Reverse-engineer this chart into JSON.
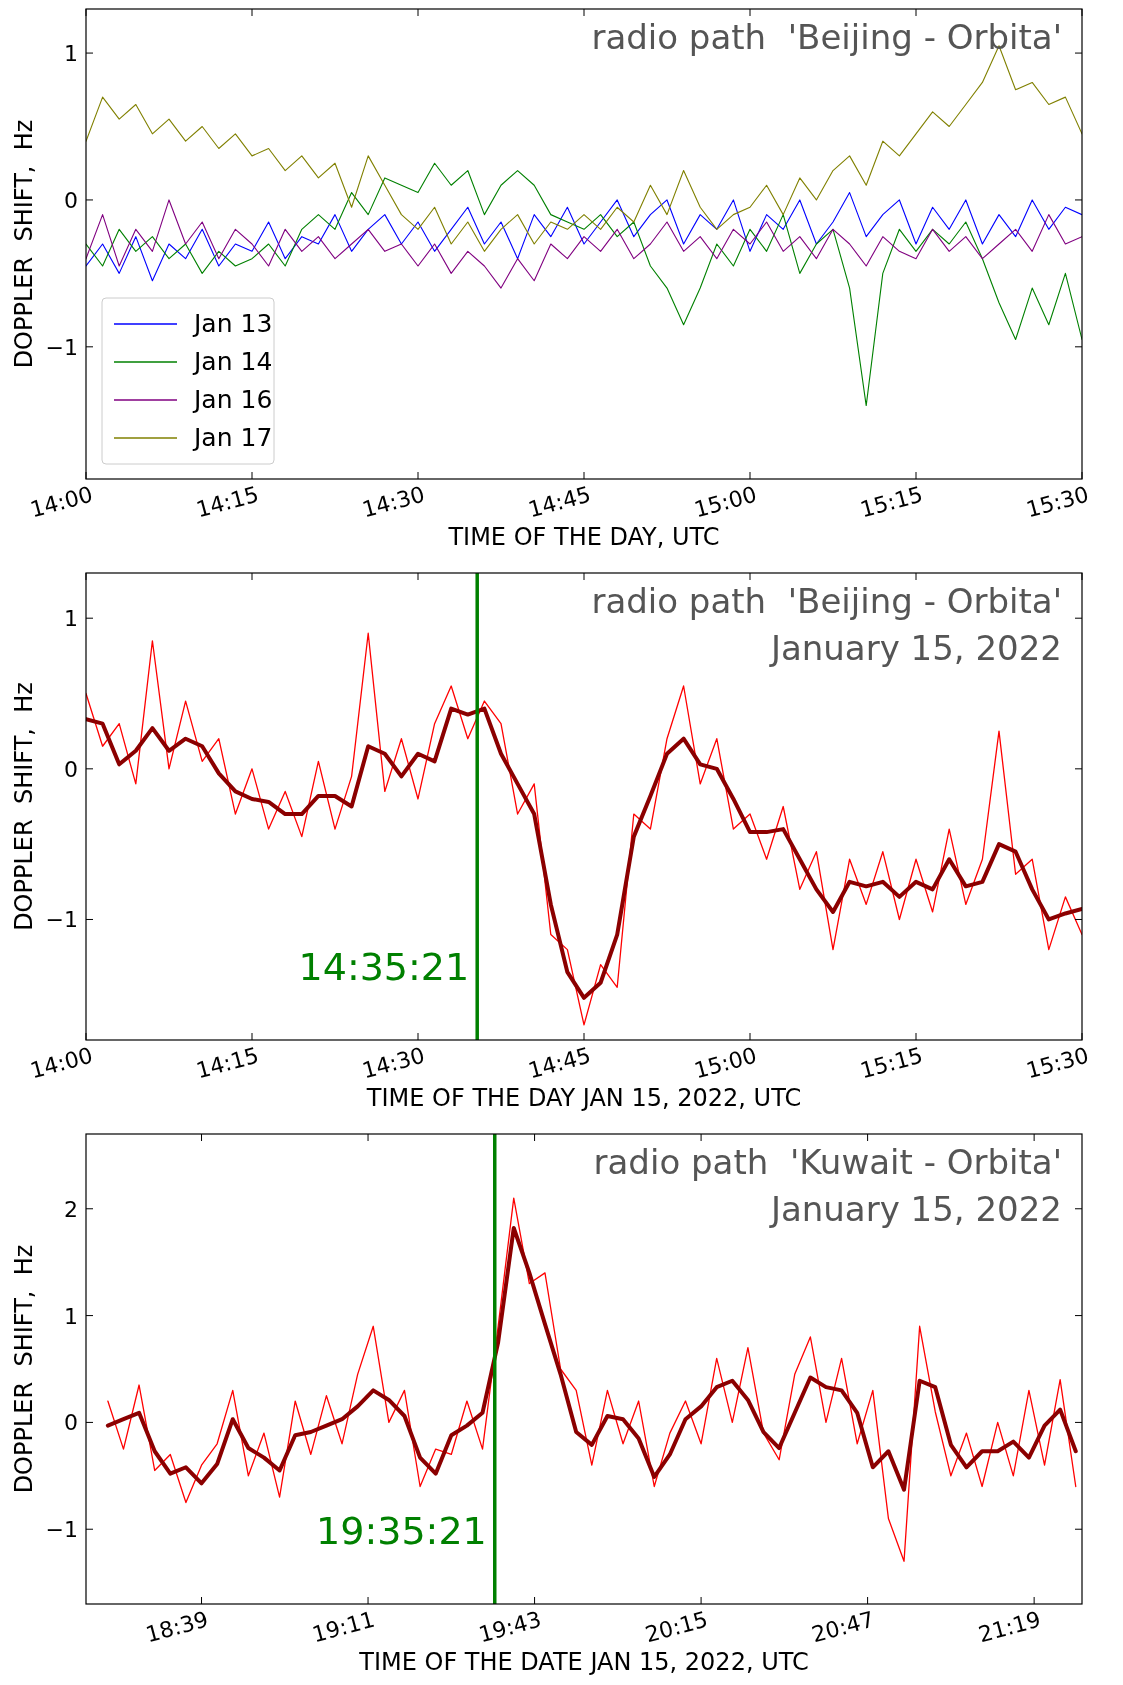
{
  "chart_data": [
    {
      "type": "line",
      "xlabel": "TIME OF THE DAY, UTC",
      "ylabel": "DOPPLER  SHIFT,  Hz",
      "annotations": [
        "radio path  'Beijing - Orbita'"
      ],
      "legend": "bottom left",
      "grid": false,
      "xlim": [
        14,
        15.5
      ],
      "ylim": [
        -1.9,
        1.3
      ],
      "xticks": [
        {
          "value": 14,
          "label": "14:00"
        },
        {
          "value": 14.25,
          "label": "14:15"
        },
        {
          "value": 14.5,
          "label": "14:30"
        },
        {
          "value": 14.75,
          "label": "14:45"
        },
        {
          "value": 15,
          "label": "15:00"
        },
        {
          "value": 15.25,
          "label": "15:15"
        },
        {
          "value": 15.5,
          "label": "15:30"
        }
      ],
      "yticks": [
        -1,
        0,
        1
      ],
      "x": [
        14,
        14.025,
        14.05,
        14.075,
        14.1,
        14.125,
        14.15,
        14.175,
        14.2,
        14.225,
        14.25,
        14.275,
        14.3,
        14.325,
        14.35,
        14.375,
        14.4,
        14.425,
        14.45,
        14.475,
        14.5,
        14.525,
        14.55,
        14.575,
        14.6,
        14.625,
        14.65,
        14.675,
        14.7,
        14.725,
        14.75,
        14.775,
        14.8,
        14.825,
        14.85,
        14.875,
        14.9,
        14.925,
        14.95,
        14.975,
        15,
        15.025,
        15.05,
        15.075,
        15.1,
        15.125,
        15.15,
        15.175,
        15.2,
        15.225,
        15.25,
        15.275,
        15.3,
        15.325,
        15.35,
        15.375,
        15.4,
        15.425,
        15.45,
        15.475,
        15.5
      ],
      "series": [
        {
          "name": "Jan 13",
          "color": "#0000ff",
          "values": [
            -0.45,
            -0.3,
            -0.5,
            -0.25,
            -0.55,
            -0.3,
            -0.4,
            -0.2,
            -0.45,
            -0.3,
            -0.35,
            -0.15,
            -0.4,
            -0.25,
            -0.3,
            -0.1,
            -0.35,
            -0.2,
            -0.1,
            -0.3,
            -0.15,
            -0.35,
            -0.2,
            -0.05,
            -0.3,
            -0.15,
            -0.4,
            -0.1,
            -0.25,
            -0.05,
            -0.3,
            -0.15,
            0.0,
            -0.25,
            -0.1,
            0.0,
            -0.3,
            -0.1,
            -0.2,
            0.0,
            -0.35,
            -0.1,
            -0.2,
            0.0,
            -0.3,
            -0.15,
            0.05,
            -0.25,
            -0.1,
            0.0,
            -0.3,
            -0.05,
            -0.2,
            0.0,
            -0.3,
            -0.1,
            -0.25,
            0.0,
            -0.2,
            -0.05,
            -0.1
          ]
        },
        {
          "name": "Jan 14",
          "color": "#008000",
          "values": [
            -0.3,
            -0.45,
            -0.2,
            -0.35,
            -0.25,
            -0.4,
            -0.3,
            -0.5,
            -0.35,
            -0.45,
            -0.4,
            -0.3,
            -0.45,
            -0.2,
            -0.1,
            -0.2,
            0.05,
            -0.1,
            0.15,
            0.1,
            0.05,
            0.25,
            0.1,
            0.2,
            -0.1,
            0.1,
            0.2,
            0.1,
            -0.1,
            -0.15,
            -0.2,
            -0.1,
            -0.25,
            -0.15,
            -0.45,
            -0.6,
            -0.85,
            -0.6,
            -0.3,
            -0.45,
            -0.2,
            -0.35,
            -0.1,
            -0.5,
            -0.3,
            -0.2,
            -0.6,
            -1.4,
            -0.5,
            -0.2,
            -0.35,
            -0.2,
            -0.3,
            -0.15,
            -0.4,
            -0.7,
            -0.95,
            -0.6,
            -0.85,
            -0.5,
            -0.95
          ]
        },
        {
          "name": "Jan 16",
          "color": "#800080",
          "values": [
            -0.4,
            -0.1,
            -0.45,
            -0.2,
            -0.35,
            0.0,
            -0.3,
            -0.15,
            -0.4,
            -0.2,
            -0.3,
            -0.45,
            -0.2,
            -0.35,
            -0.25,
            -0.4,
            -0.3,
            -0.2,
            -0.35,
            -0.3,
            -0.45,
            -0.3,
            -0.5,
            -0.35,
            -0.45,
            -0.6,
            -0.4,
            -0.55,
            -0.3,
            -0.4,
            -0.25,
            -0.35,
            -0.2,
            -0.4,
            -0.3,
            -0.15,
            -0.35,
            -0.25,
            -0.4,
            -0.2,
            -0.3,
            -0.15,
            -0.35,
            -0.25,
            -0.4,
            -0.2,
            -0.3,
            -0.45,
            -0.25,
            -0.35,
            -0.4,
            -0.2,
            -0.35,
            -0.25,
            -0.4,
            -0.3,
            -0.2,
            -0.35,
            -0.1,
            -0.3,
            -0.25
          ]
        },
        {
          "name": "Jan 17",
          "color": "#808000",
          "values": [
            0.4,
            0.7,
            0.55,
            0.65,
            0.45,
            0.55,
            0.4,
            0.5,
            0.35,
            0.45,
            0.3,
            0.35,
            0.2,
            0.3,
            0.15,
            0.25,
            -0.05,
            0.3,
            0.1,
            -0.1,
            -0.2,
            -0.05,
            -0.3,
            -0.15,
            -0.35,
            -0.2,
            -0.1,
            -0.3,
            -0.15,
            -0.2,
            -0.1,
            -0.2,
            -0.05,
            -0.15,
            0.1,
            -0.1,
            0.2,
            -0.05,
            -0.2,
            -0.1,
            -0.05,
            0.1,
            -0.1,
            0.15,
            0.0,
            0.2,
            0.3,
            0.1,
            0.4,
            0.3,
            0.45,
            0.6,
            0.5,
            0.65,
            0.8,
            1.05,
            0.75,
            0.8,
            0.65,
            0.7,
            0.45
          ]
        }
      ]
    },
    {
      "type": "line",
      "xlabel": "TIME OF THE DAY JAN 15, 2022, UTC",
      "ylabel": "DOPPLER  SHIFT,  Hz",
      "annotations": [
        "radio path  'Beijing - Orbita'",
        "January 15, 2022",
        {
          "text": "14:35:21",
          "x": 14.589167,
          "y": -1.4
        }
      ],
      "grid": false,
      "xlim": [
        14,
        15.5
      ],
      "ylim": [
        -1.8,
        1.3
      ],
      "xticks": [
        {
          "value": 14,
          "label": "14:00"
        },
        {
          "value": 14.25,
          "label": "14:15"
        },
        {
          "value": 14.5,
          "label": "14:30"
        },
        {
          "value": 14.75,
          "label": "14:45"
        },
        {
          "value": 15,
          "label": "15:00"
        },
        {
          "value": 15.25,
          "label": "15:15"
        },
        {
          "value": 15.5,
          "label": "15:30"
        }
      ],
      "yticks": [
        -1,
        0,
        1
      ],
      "ref_lines": [
        {
          "axis": "x",
          "value": 14.589167,
          "color": "#008000"
        }
      ],
      "x": [
        14,
        14.025,
        14.05,
        14.075,
        14.1,
        14.125,
        14.15,
        14.175,
        14.2,
        14.225,
        14.25,
        14.275,
        14.3,
        14.325,
        14.35,
        14.375,
        14.4,
        14.425,
        14.45,
        14.475,
        14.5,
        14.525,
        14.55,
        14.575,
        14.6,
        14.625,
        14.65,
        14.675,
        14.7,
        14.725,
        14.75,
        14.775,
        14.8,
        14.825,
        14.85,
        14.875,
        14.9,
        14.925,
        14.95,
        14.975,
        15,
        15.025,
        15.05,
        15.075,
        15.1,
        15.125,
        15.15,
        15.175,
        15.2,
        15.225,
        15.25,
        15.275,
        15.3,
        15.325,
        15.35,
        15.375,
        15.4,
        15.425,
        15.45,
        15.475,
        15.5
      ],
      "series": [
        {
          "color": "#ff0000",
          "values": [
            0.5,
            0.15,
            0.3,
            -0.1,
            0.85,
            0.0,
            0.45,
            0.05,
            0.2,
            -0.3,
            0.0,
            -0.4,
            -0.15,
            -0.45,
            0.05,
            -0.4,
            -0.05,
            0.9,
            -0.15,
            0.2,
            -0.2,
            0.3,
            0.55,
            0.2,
            0.45,
            0.3,
            -0.3,
            -0.1,
            -1.1,
            -1.2,
            -1.7,
            -1.3,
            -1.45,
            -0.3,
            -0.4,
            0.2,
            0.55,
            -0.1,
            0.2,
            -0.4,
            -0.3,
            -0.6,
            -0.25,
            -0.8,
            -0.55,
            -1.2,
            -0.6,
            -0.9,
            -0.55,
            -1.0,
            -0.6,
            -0.95,
            -0.4,
            -0.9,
            -0.6,
            0.25,
            -0.7,
            -0.6,
            -1.2,
            -0.85,
            -1.1
          ]
        },
        {
          "color": "#8b0000",
          "values": [
            0.33,
            0.3,
            0.03,
            0.12,
            0.27,
            0.12,
            0.2,
            0.15,
            -0.03,
            -0.15,
            -0.2,
            -0.22,
            -0.3,
            -0.3,
            -0.18,
            -0.18,
            -0.25,
            0.15,
            0.1,
            -0.05,
            0.1,
            0.05,
            0.4,
            0.36,
            0.4,
            0.1,
            -0.1,
            -0.3,
            -0.9,
            -1.35,
            -1.52,
            -1.42,
            -1.1,
            -0.45,
            -0.18,
            0.1,
            0.2,
            0.03,
            0.0,
            -0.2,
            -0.42,
            -0.42,
            -0.4,
            -0.6,
            -0.8,
            -0.95,
            -0.75,
            -0.78,
            -0.75,
            -0.85,
            -0.75,
            -0.8,
            -0.6,
            -0.78,
            -0.75,
            -0.5,
            -0.55,
            -0.8,
            -1.0,
            -0.96,
            -0.93
          ]
        }
      ]
    },
    {
      "type": "line",
      "xlabel": "TIME OF THE DATE JAN 15, 2022, UTC",
      "ylabel": "DOPPLER  SHIFT,  Hz",
      "annotations": [
        "radio path  'Kuwait - Orbita'",
        "January 15, 2022",
        {
          "text": "19:35:21",
          "x": 19.589167,
          "y": -1.14
        }
      ],
      "grid": false,
      "xlim": [
        18.28,
        21.47
      ],
      "ylim": [
        -1.7,
        2.7
      ],
      "xticks": [
        {
          "value": 18.65,
          "label": "18:39"
        },
        {
          "value": 19.1833,
          "label": "19:11"
        },
        {
          "value": 19.7167,
          "label": "19:43"
        },
        {
          "value": 20.25,
          "label": "20:15"
        },
        {
          "value": 20.7833,
          "label": "20:47"
        },
        {
          "value": 21.3167,
          "label": "21:19"
        }
      ],
      "yticks": [
        -1,
        0,
        1,
        2
      ],
      "ref_lines": [
        {
          "axis": "x",
          "value": 19.589167,
          "color": "#008000"
        }
      ],
      "x": [
        18.35,
        18.4,
        18.45,
        18.5,
        18.55,
        18.6,
        18.65,
        18.7,
        18.75,
        18.8,
        18.85,
        18.9,
        18.95,
        19,
        19.05,
        19.1,
        19.15,
        19.2,
        19.25,
        19.3,
        19.35,
        19.4,
        19.45,
        19.5,
        19.55,
        19.6,
        19.65,
        19.7,
        19.75,
        19.8,
        19.85,
        19.9,
        19.95,
        20,
        20.05,
        20.1,
        20.15,
        20.2,
        20.25,
        20.3,
        20.35,
        20.4,
        20.45,
        20.5,
        20.55,
        20.6,
        20.65,
        20.7,
        20.75,
        20.8,
        20.85,
        20.9,
        20.95,
        21,
        21.05,
        21.1,
        21.15,
        21.2,
        21.25,
        21.3,
        21.35,
        21.4,
        21.45
      ],
      "series": [
        {
          "color": "#ff0000",
          "values": [
            0.2,
            -0.25,
            0.35,
            -0.45,
            -0.3,
            -0.75,
            -0.4,
            -0.2,
            0.3,
            -0.5,
            -0.1,
            -0.7,
            0.2,
            -0.3,
            0.25,
            -0.2,
            0.45,
            0.9,
            0.0,
            0.3,
            -0.6,
            -0.25,
            -0.3,
            0.2,
            -0.25,
            0.9,
            2.1,
            1.3,
            1.4,
            0.5,
            0.3,
            -0.4,
            0.3,
            -0.2,
            0.2,
            -0.6,
            -0.1,
            0.2,
            -0.2,
            0.6,
            0.0,
            0.7,
            -0.1,
            -0.35,
            0.45,
            0.8,
            0.0,
            0.6,
            -0.2,
            0.3,
            -0.9,
            -1.3,
            0.9,
            0.1,
            -0.5,
            -0.1,
            -0.6,
            0.0,
            -0.5,
            0.3,
            -0.4,
            0.4,
            -0.6
          ]
        },
        {
          "color": "#8b0000",
          "values": [
            -0.03,
            0.03,
            0.09,
            -0.27,
            -0.48,
            -0.42,
            -0.57,
            -0.39,
            0.03,
            -0.24,
            -0.33,
            -0.45,
            -0.12,
            -0.09,
            -0.03,
            0.03,
            0.15,
            0.3,
            0.21,
            0.06,
            -0.33,
            -0.48,
            -0.12,
            -0.03,
            0.09,
            0.75,
            1.82,
            1.4,
            0.92,
            0.45,
            -0.09,
            -0.21,
            0.06,
            0.03,
            -0.15,
            -0.51,
            -0.3,
            0.03,
            0.15,
            0.33,
            0.39,
            0.21,
            -0.09,
            -0.24,
            0.09,
            0.42,
            0.33,
            0.3,
            0.09,
            -0.42,
            -0.27,
            -0.63,
            0.39,
            0.33,
            -0.21,
            -0.42,
            -0.27,
            -0.27,
            -0.18,
            -0.33,
            -0.03,
            0.12,
            -0.27
          ]
        }
      ]
    }
  ]
}
